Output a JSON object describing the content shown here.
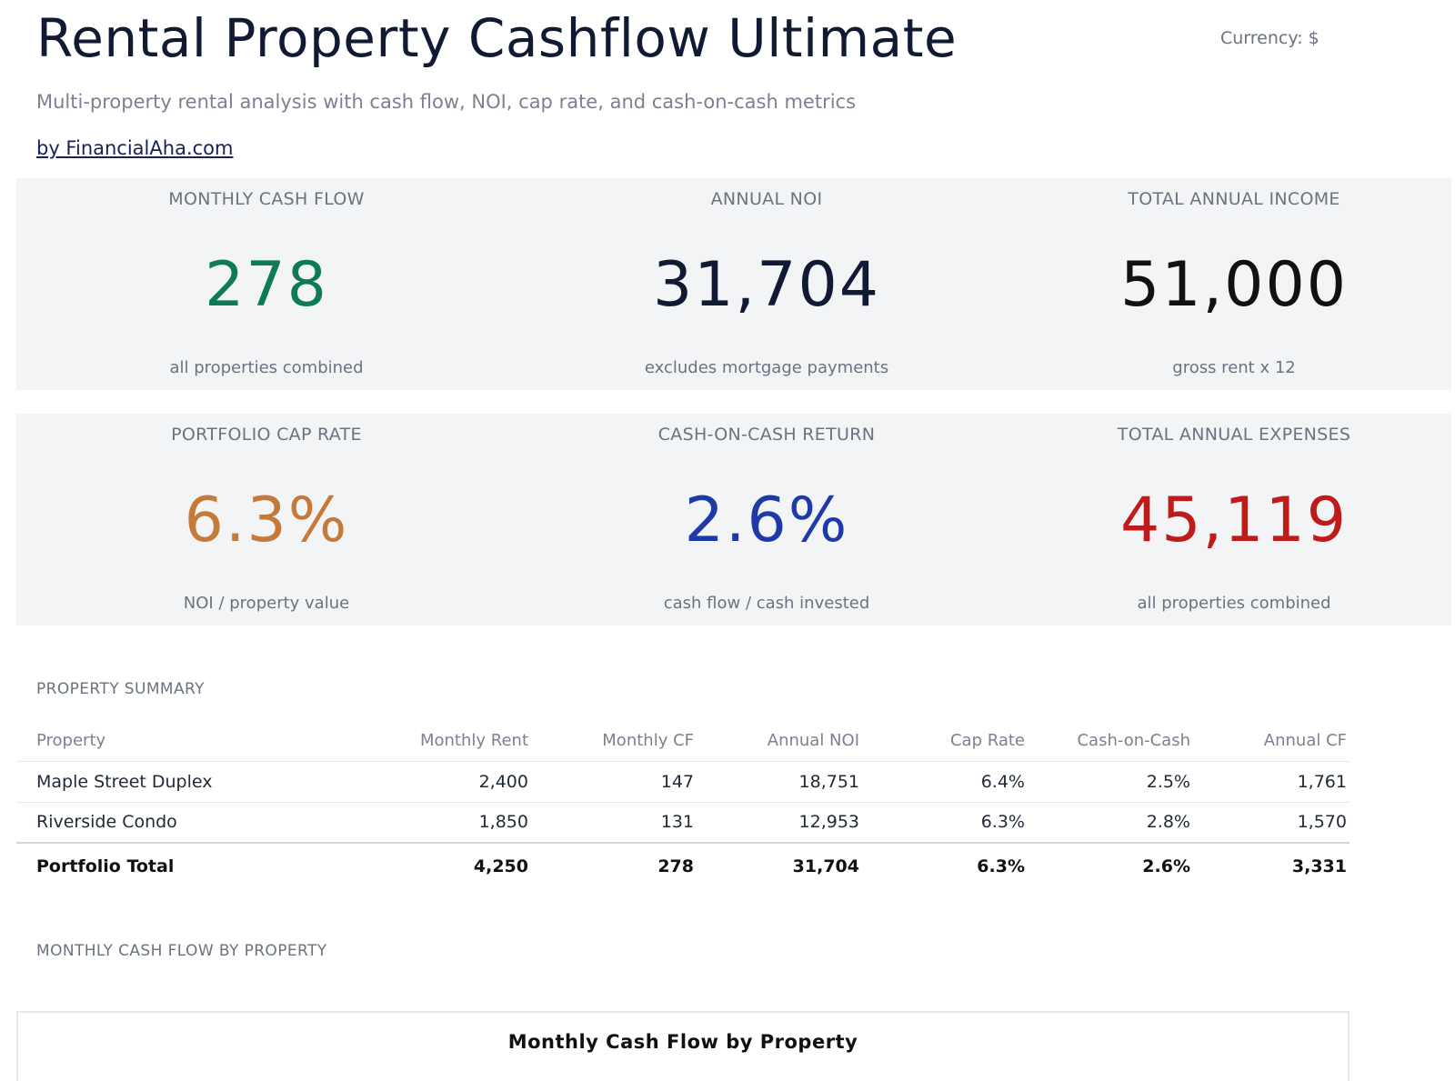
{
  "header": {
    "title": "Rental Property Cashflow Ultimate",
    "currency": "Currency: $",
    "subtitle": "Multi-property rental analysis with cash flow, NOI, cap rate, and cash-on-cash metrics",
    "byline": "by FinancialAha.com"
  },
  "metrics": [
    {
      "label": "MONTHLY CASH FLOW",
      "value": "278",
      "sub": "all properties combined",
      "color": "#0f7a56"
    },
    {
      "label": "ANNUAL NOI",
      "value": "31,704",
      "sub": "excludes mortgage payments",
      "color": "#111a33"
    },
    {
      "label": "TOTAL ANNUAL INCOME",
      "value": "51,000",
      "sub": "gross rent x 12",
      "color": "#111111"
    },
    {
      "label": "PORTFOLIO CAP RATE",
      "value": "6.3%",
      "sub": "NOI / property value",
      "color": "#c47a3a"
    },
    {
      "label": "CASH-ON-CASH RETURN",
      "value": "2.6%",
      "sub": "cash flow / cash invested",
      "color": "#1e3aa8"
    },
    {
      "label": "TOTAL ANNUAL EXPENSES",
      "value": "45,119",
      "sub": "all properties combined",
      "color": "#c01b1b"
    }
  ],
  "summary": {
    "section_label": "PROPERTY SUMMARY",
    "columns": [
      "Property",
      "Monthly Rent",
      "Monthly CF",
      "Annual NOI",
      "Cap Rate",
      "Cash-on-Cash",
      "Annual CF"
    ],
    "rows": [
      [
        "Maple Street Duplex",
        "2,400",
        "147",
        "18,751",
        "6.4%",
        "2.5%",
        "1,761"
      ],
      [
        "Riverside Condo",
        "1,850",
        "131",
        "12,953",
        "6.3%",
        "2.8%",
        "1,570"
      ]
    ],
    "total": [
      "Portfolio Total",
      "4,250",
      "278",
      "31,704",
      "6.3%",
      "2.6%",
      "3,331"
    ]
  },
  "chart_section": {
    "section_label": "MONTHLY CASH FLOW BY PROPERTY",
    "chart_title": "Monthly Cash Flow by Property"
  }
}
